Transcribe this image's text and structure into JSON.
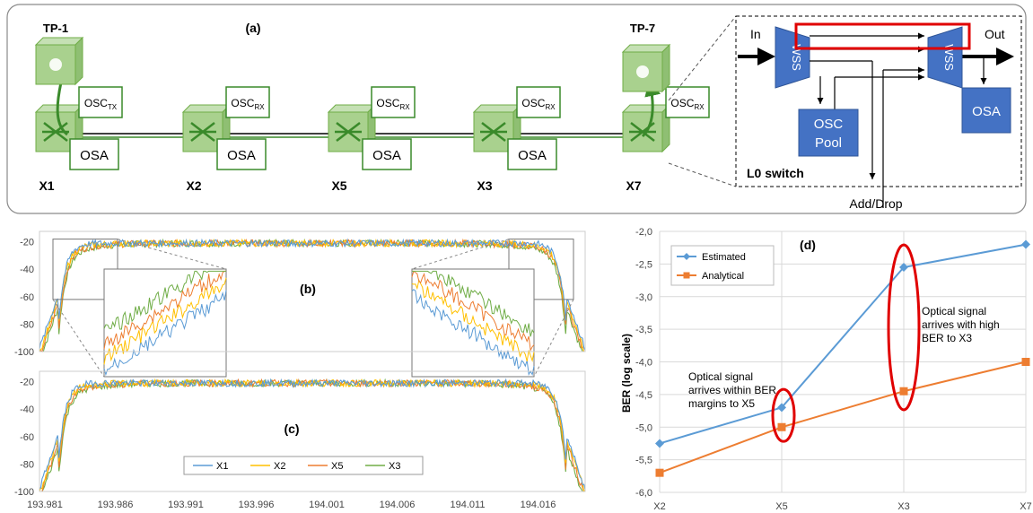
{
  "panel_a": {
    "label": "(a)",
    "transponders": [
      {
        "label": "TP-1"
      },
      {
        "label": "TP-7"
      }
    ],
    "nodes": [
      {
        "name": "X1",
        "osc_base": "OSC",
        "osc_sub": "TX",
        "osa": "OSA"
      },
      {
        "name": "X2",
        "osc_base": "OSC",
        "osc_sub": "RX",
        "osa": "OSA"
      },
      {
        "name": "X5",
        "osc_base": "OSC",
        "osc_sub": "RX",
        "osa": "OSA"
      },
      {
        "name": "X3",
        "osc_base": "OSC",
        "osc_sub": "RX",
        "osa": "OSA"
      },
      {
        "name": "X7",
        "osc_base": "OSC",
        "osc_sub": "RX",
        "osa": null
      }
    ],
    "switch_detail": {
      "in": "In",
      "out": "Out",
      "wss_left": "WSS",
      "wss_right": "WSS",
      "osc_pool_line1": "OSC",
      "osc_pool_line2": "Pool",
      "osa": "OSA",
      "title": "L0 switch",
      "add_drop": "Add/Drop"
    },
    "colors": {
      "green_fill": "#a9d18e",
      "green_stroke": "#70ad47",
      "blue_fill": "#4472c4",
      "highlight": "#e00000"
    }
  },
  "panel_b": {
    "label": "(b)"
  },
  "panel_c": {
    "label": "(c)"
  },
  "spectra": {
    "y_ticks": [
      "-20",
      "-40",
      "-60",
      "-80",
      "-100"
    ],
    "x_ticks": [
      "193.981",
      "193.986",
      "193.991",
      "193.996",
      "194.001",
      "194.006",
      "194.011",
      "194.016"
    ],
    "series": [
      {
        "name": "X1",
        "color": "#5b9bd5"
      },
      {
        "name": "X2",
        "color": "#ffc000"
      },
      {
        "name": "X5",
        "color": "#ed7d31"
      },
      {
        "name": "X3",
        "color": "#70ad47"
      }
    ]
  },
  "chart_data": {
    "type": "line",
    "title": "(d)",
    "ylabel": "BER (log scale)",
    "categories": [
      "X2",
      "X5",
      "X3",
      "X7"
    ],
    "ylim": [
      -6.0,
      -2.0
    ],
    "y_ticks": [
      "-2,0",
      "-2,5",
      "-3,0",
      "-3,5",
      "-4,0",
      "-4,5",
      "-5,0",
      "-5,5",
      "-6,0"
    ],
    "legend_position": "top-left",
    "series": [
      {
        "name": "Estimated",
        "color": "#5b9bd5",
        "marker": "diamond",
        "values": [
          -5.25,
          -4.7,
          -2.55,
          -2.2
        ]
      },
      {
        "name": "Analytical",
        "color": "#ed7d31",
        "marker": "square",
        "values": [
          -5.7,
          -5.0,
          -4.45,
          -4.0
        ]
      }
    ],
    "annotations": [
      {
        "lines": [
          "Optical signal",
          "arrives within BER",
          "margins to X5"
        ]
      },
      {
        "lines": [
          "Optical signal",
          "arrives with high",
          "BER to X3"
        ]
      }
    ]
  }
}
